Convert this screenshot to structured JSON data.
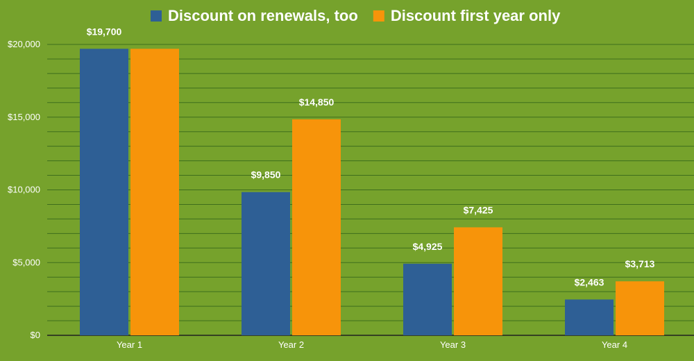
{
  "chart_data": {
    "type": "bar",
    "title": "",
    "xlabel": "",
    "ylabel": "",
    "categories": [
      "Year 1",
      "Year 2",
      "Year 3",
      "Year 4"
    ],
    "series": [
      {
        "name": "Discount on renewals, too",
        "color": "#2E5F95",
        "values": [
          19700,
          9850,
          4925,
          2463
        ],
        "labels": [
          "$19,700",
          "$9,850",
          "$4,925",
          "$2,463"
        ]
      },
      {
        "name": "Discount first year only",
        "color": "#F7940A",
        "values": [
          19700,
          14850,
          7425,
          3713
        ],
        "labels": [
          "",
          "$14,850",
          "$7,425",
          "$3,713"
        ]
      }
    ],
    "ylim": [
      0,
      20000
    ],
    "yticks": [
      0,
      5000,
      10000,
      15000,
      20000
    ],
    "ytick_labels": [
      "$0",
      "$5,000",
      "$10,000",
      "$15,000",
      "$20,000"
    ],
    "grid": true,
    "legend_position": "top-center",
    "background_color": "#76A22C",
    "gridline_color": "#3E6E1C"
  }
}
